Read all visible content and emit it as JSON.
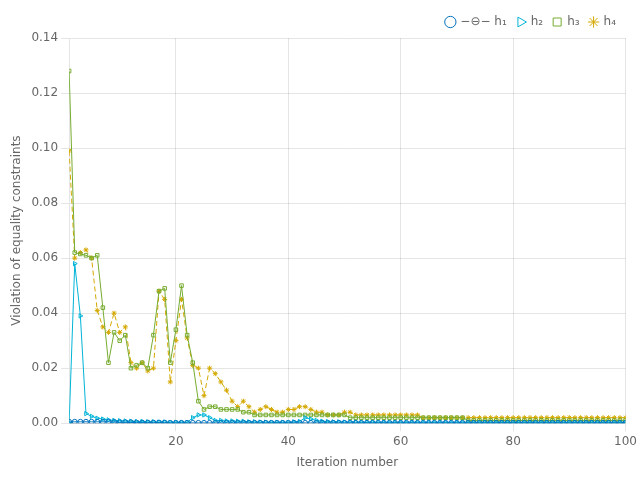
{
  "chart_data": {
    "type": "line",
    "xlabel": "Iteration number",
    "ylabel": "Violation of equality constraints",
    "xlim": [
      1,
      100
    ],
    "ylim": [
      0,
      0.14
    ],
    "xticks": [
      20,
      40,
      60,
      80,
      100
    ],
    "yticks": [
      {
        "value": 0,
        "label": "0.00"
      },
      0.02,
      0.04,
      0.06,
      0.08,
      {
        "value": 0.1,
        "label": "0.10"
      },
      0.12,
      0.14
    ],
    "grid": true,
    "legend": "upper right",
    "x": [
      1,
      2,
      3,
      4,
      5,
      6,
      7,
      8,
      9,
      10,
      11,
      12,
      13,
      14,
      15,
      16,
      17,
      18,
      19,
      20,
      21,
      22,
      23,
      24,
      25,
      26,
      27,
      28,
      29,
      30,
      31,
      32,
      33,
      34,
      35,
      36,
      37,
      38,
      39,
      40,
      41,
      42,
      43,
      44,
      45,
      46,
      47,
      48,
      49,
      50,
      51,
      52,
      53,
      54,
      55,
      56,
      57,
      58,
      59,
      60,
      61,
      62,
      63,
      64,
      65,
      66,
      67,
      68,
      69,
      70,
      71,
      72,
      73,
      74,
      75,
      76,
      77,
      78,
      79,
      80,
      81,
      82,
      83,
      84,
      85,
      86,
      87,
      88,
      89,
      90,
      91,
      92,
      93,
      94,
      95,
      96,
      97,
      98,
      99,
      100
    ],
    "series": [
      {
        "name": "−⊖− h₁",
        "color": "#0072BD",
        "marker": "circle",
        "line_style": "solid",
        "values": [
          0.0005,
          0.0005,
          0.0005,
          0.0005,
          0.0005,
          0.0005,
          0.0005,
          0.0005,
          0.0004,
          0.0003,
          0.0003,
          0.0003,
          0.0002,
          0.0002,
          0.0002,
          0.0002,
          0.0002,
          0.0002,
          0.0001,
          0.0001,
          0.0001,
          0.0001,
          0.0001,
          0.0001,
          0.0001,
          0.0001,
          0.0001,
          0.0001,
          0.0001,
          0.0001,
          0.0001,
          0.0001,
          0.0001,
          0.0001,
          0.0001,
          0.0001,
          0.0001,
          0.0001,
          0.0001,
          0.0001,
          0.0001,
          0.0001,
          0.0001,
          0.0001,
          0.0001,
          0.0001,
          0.0001,
          0.0001,
          0.0001,
          0.0001,
          0.0001,
          0.0001,
          0.0001,
          0.0001,
          0.0001,
          0.0001,
          0.0001,
          0.0001,
          0.0001,
          0.0001,
          0.0001,
          0.0001,
          0.0001,
          0.0001,
          0.0001,
          0.0001,
          0.0001,
          0.0001,
          0.0001,
          0.0001,
          0.0001,
          0.0001,
          0.0001,
          0.0001,
          0.0001,
          0.0001,
          0.0001,
          0.0001,
          0.0001,
          0.0001,
          0.0001,
          0.0001,
          0.0001,
          0.0001,
          0.0001,
          0.0001,
          0.0001,
          0.0001,
          0.0001,
          0.0001,
          0.0001,
          0.0001,
          0.0001,
          0.0001,
          0.0001,
          0.0001,
          0.0001,
          0.0001,
          0.0001,
          0.0001
        ]
      },
      {
        "name": "h₂",
        "color": "#00B4D8",
        "marker": "triangle-right",
        "line_style": "solid",
        "values": [
          0.0,
          0.058,
          0.039,
          0.0035,
          0.0025,
          0.0018,
          0.0015,
          0.0012,
          0.001,
          0.0009,
          0.0008,
          0.0007,
          0.0006,
          0.0006,
          0.0005,
          0.0005,
          0.0004,
          0.0004,
          0.0003,
          0.0003,
          0.0003,
          0.0003,
          0.002,
          0.003,
          0.003,
          0.002,
          0.001,
          0.001,
          0.0008,
          0.0008,
          0.0007,
          0.0007,
          0.0005,
          0.0005,
          0.0004,
          0.0004,
          0.0003,
          0.0003,
          0.0003,
          0.0003,
          0.0005,
          0.0006,
          0.002,
          0.0015,
          0.001,
          0.0007,
          0.0006,
          0.0005,
          0.0005,
          0.0004,
          0.0004,
          0.0004,
          0.0003,
          0.0003,
          0.0003,
          0.0003,
          0.0002,
          0.0002,
          0.0002,
          0.0002,
          0.0002,
          0.0002,
          0.0002,
          0.0002,
          0.0002,
          0.0002,
          0.0002,
          0.0002,
          0.0002,
          0.0002,
          0.0002,
          0.0002,
          0.0002,
          0.0002,
          0.0002,
          0.0002,
          0.0002,
          0.0002,
          0.0002,
          0.0002,
          0.0002,
          0.0002,
          0.0002,
          0.0002,
          0.0002,
          0.0002,
          0.0002,
          0.0002,
          0.0002,
          0.0002,
          0.0002,
          0.0002,
          0.0002,
          0.0002,
          0.0002,
          0.0002,
          0.0002,
          0.0002,
          0.0002,
          0.0002
        ]
      },
      {
        "name": "h₃",
        "color": "#77AC30",
        "marker": "square",
        "line_style": "solid",
        "values": [
          0.128,
          0.062,
          0.0615,
          0.061,
          0.06,
          0.061,
          0.042,
          0.022,
          0.033,
          0.03,
          0.032,
          0.02,
          0.021,
          0.022,
          0.02,
          0.032,
          0.048,
          0.049,
          0.022,
          0.034,
          0.05,
          0.032,
          0.022,
          0.008,
          0.005,
          0.006,
          0.006,
          0.005,
          0.005,
          0.005,
          0.005,
          0.004,
          0.004,
          0.003,
          0.003,
          0.003,
          0.003,
          0.003,
          0.003,
          0.003,
          0.003,
          0.003,
          0.003,
          0.003,
          0.003,
          0.003,
          0.003,
          0.003,
          0.003,
          0.003,
          0.002,
          0.002,
          0.002,
          0.002,
          0.002,
          0.002,
          0.002,
          0.002,
          0.002,
          0.002,
          0.002,
          0.002,
          0.002,
          0.002,
          0.002,
          0.002,
          0.002,
          0.002,
          0.002,
          0.002,
          0.002,
          0.001,
          0.001,
          0.001,
          0.001,
          0.001,
          0.001,
          0.001,
          0.001,
          0.001,
          0.001,
          0.001,
          0.001,
          0.001,
          0.001,
          0.001,
          0.001,
          0.001,
          0.001,
          0.001,
          0.001,
          0.001,
          0.001,
          0.001,
          0.001,
          0.001,
          0.001,
          0.001,
          0.001,
          0.001
        ]
      },
      {
        "name": "h₄",
        "color": "#D4A800",
        "marker": "star",
        "line_style": "dashed",
        "values": [
          0.099,
          0.06,
          0.062,
          0.063,
          0.06,
          0.041,
          0.035,
          0.033,
          0.04,
          0.033,
          0.035,
          0.022,
          0.02,
          0.022,
          0.019,
          0.02,
          0.048,
          0.045,
          0.015,
          0.03,
          0.045,
          0.031,
          0.021,
          0.02,
          0.01,
          0.02,
          0.018,
          0.015,
          0.012,
          0.008,
          0.006,
          0.008,
          0.006,
          0.004,
          0.005,
          0.006,
          0.005,
          0.004,
          0.004,
          0.005,
          0.005,
          0.006,
          0.006,
          0.005,
          0.004,
          0.004,
          0.003,
          0.003,
          0.003,
          0.004,
          0.004,
          0.003,
          0.003,
          0.003,
          0.003,
          0.003,
          0.003,
          0.003,
          0.003,
          0.003,
          0.003,
          0.003,
          0.003,
          0.002,
          0.002,
          0.002,
          0.002,
          0.002,
          0.002,
          0.002,
          0.002,
          0.002,
          0.002,
          0.002,
          0.002,
          0.002,
          0.002,
          0.002,
          0.002,
          0.002,
          0.002,
          0.002,
          0.002,
          0.002,
          0.002,
          0.002,
          0.002,
          0.002,
          0.002,
          0.002,
          0.002,
          0.002,
          0.002,
          0.002,
          0.002,
          0.002,
          0.002,
          0.002,
          0.002,
          0.002
        ]
      }
    ]
  }
}
